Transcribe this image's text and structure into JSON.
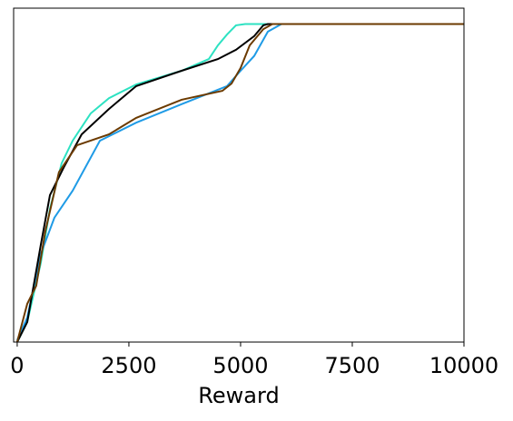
{
  "chart_data": {
    "type": "line",
    "xlabel": "Reward",
    "xlim": [
      -80,
      10000
    ],
    "ylim": [
      0,
      1.05
    ],
    "xticks": [
      0,
      2500,
      5000,
      7500,
      10000
    ],
    "series": [
      {
        "color": "#2de2c2",
        "x": [
          0,
          224,
          528,
          732,
          996,
          1240,
          1646,
          2053,
          2663,
          3679,
          4289,
          4492,
          4695,
          4898,
          5102,
          10000
        ],
        "values": [
          0,
          0.063,
          0.248,
          0.419,
          0.562,
          0.633,
          0.719,
          0.767,
          0.81,
          0.853,
          0.89,
          0.933,
          0.967,
          0.996,
          1,
          1
        ]
      },
      {
        "color": "#1f9be6",
        "x": [
          0,
          224,
          528,
          833,
          1240,
          1850,
          2663,
          3679,
          4695,
          5000,
          5305,
          5610,
          5915,
          10000
        ],
        "values": [
          0.006,
          0.077,
          0.277,
          0.391,
          0.476,
          0.633,
          0.69,
          0.748,
          0.805,
          0.853,
          0.9,
          0.976,
          1,
          1
        ]
      },
      {
        "color": "#000000",
        "x": [
          0,
          224,
          528,
          732,
          1037,
          1443,
          2053,
          2663,
          3679,
          4492,
          4898,
          5305,
          5508,
          5610,
          10000
        ],
        "values": [
          0,
          0.063,
          0.305,
          0.462,
          0.548,
          0.653,
          0.733,
          0.805,
          0.853,
          0.89,
          0.919,
          0.962,
          0.996,
          1,
          1
        ]
      },
      {
        "color": "#6b3a00",
        "x": [
          0,
          224,
          427,
          630,
          935,
          1341,
          2053,
          2663,
          3679,
          4593,
          4797,
          5000,
          5203,
          5508,
          5711,
          10000
        ],
        "values": [
          0,
          0.12,
          0.177,
          0.348,
          0.534,
          0.619,
          0.653,
          0.705,
          0.762,
          0.79,
          0.813,
          0.862,
          0.933,
          0.984,
          1,
          1
        ]
      }
    ]
  }
}
